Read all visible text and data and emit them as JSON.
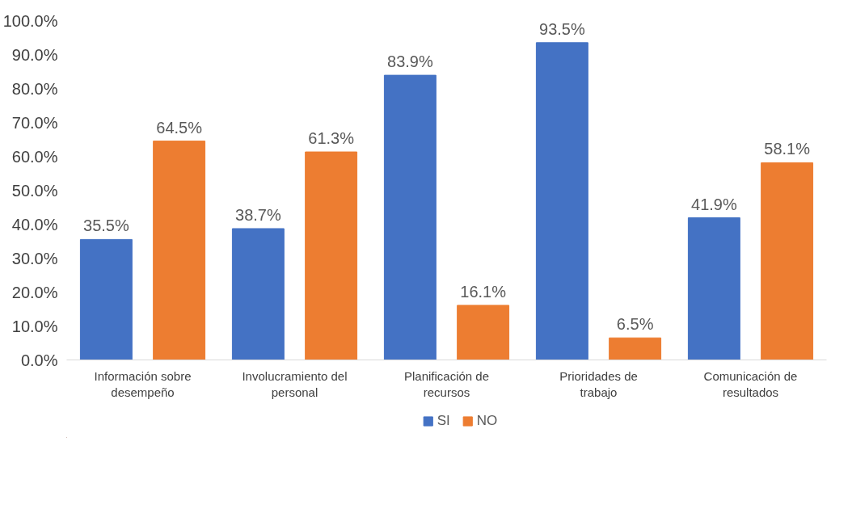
{
  "chart_data": {
    "type": "bar",
    "categories": [
      "Información sobre desempeño",
      "Involucramiento del personal",
      "Planificación de recursos",
      "Prioridades de trabajo",
      "Comunicación de resultados"
    ],
    "series": [
      {
        "name": "SI",
        "color": "#4472c4",
        "values": [
          35.5,
          38.7,
          83.9,
          93.5,
          41.9
        ],
        "value_labels": [
          "35.5%",
          "38.7%",
          "83.9%",
          "93.5%",
          "41.9%"
        ]
      },
      {
        "name": "NO",
        "color": "#ed7d31",
        "values": [
          64.5,
          61.3,
          16.1,
          6.5,
          58.1
        ],
        "value_labels": [
          "64.5%",
          "61.3%",
          "16.1%",
          "6.5%",
          "58.1%"
        ]
      }
    ],
    "ylim": [
      0,
      100
    ],
    "yticks": [
      {
        "value": 0,
        "label": "0.0%"
      },
      {
        "value": 10,
        "label": "10.0%"
      },
      {
        "value": 20,
        "label": "20.0%"
      },
      {
        "value": 30,
        "label": "30.0%"
      },
      {
        "value": 40,
        "label": "40.0%"
      },
      {
        "value": 50,
        "label": "50.0%"
      },
      {
        "value": 60,
        "label": "60.0%"
      },
      {
        "value": 70,
        "label": "70.0%"
      },
      {
        "value": 80,
        "label": "80.0%"
      },
      {
        "value": 90,
        "label": "90.0%"
      },
      {
        "value": 100,
        "label": "100.0%"
      }
    ],
    "grid": false,
    "legend": "bottom"
  }
}
